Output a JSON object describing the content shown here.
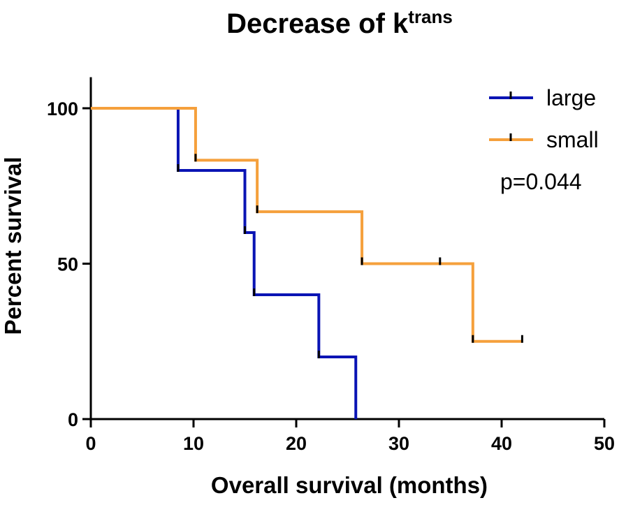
{
  "chart_data": {
    "type": "line",
    "subtype": "kaplan-meier-step",
    "title": "Decrease of k",
    "title_superscript": "trans",
    "xlabel": "Overall survival (months)",
    "ylabel": "Percent survival",
    "xlim": [
      0,
      50
    ],
    "ylim": [
      0,
      110
    ],
    "xticks": [
      0,
      10,
      20,
      30,
      40,
      50
    ],
    "yticks": [
      0,
      50,
      100
    ],
    "legend_position": "top-right",
    "annotation": "p=0.044",
    "series": [
      {
        "name": "large",
        "color": "#0a14b4",
        "steps": [
          [
            0,
            100
          ],
          [
            8.5,
            80
          ],
          [
            15,
            60
          ],
          [
            15.9,
            40
          ],
          [
            22.2,
            20
          ],
          [
            25.8,
            0
          ]
        ],
        "end_x": 25.8,
        "censored": [
          [
            8.5,
            80
          ],
          [
            15,
            60
          ],
          [
            15.9,
            40
          ],
          [
            22.2,
            20
          ]
        ]
      },
      {
        "name": "small",
        "color": "#f5a03c",
        "steps": [
          [
            0,
            100
          ],
          [
            10.2,
            83.3
          ],
          [
            16.2,
            66.7
          ],
          [
            26.4,
            50
          ],
          [
            37.2,
            25
          ]
        ],
        "end_x": 42,
        "censored": [
          [
            10.2,
            83.3
          ],
          [
            16.2,
            66.7
          ],
          [
            26.4,
            50
          ],
          [
            34,
            50
          ],
          [
            37.2,
            25
          ],
          [
            42,
            25
          ]
        ]
      }
    ]
  }
}
